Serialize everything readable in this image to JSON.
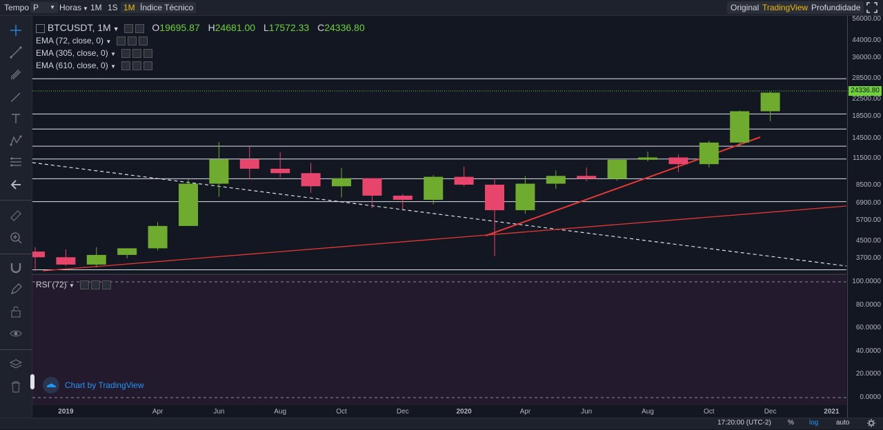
{
  "toolbar": {
    "tempo": "Tempo",
    "p": "P",
    "horas": "Horas",
    "m1": "1M",
    "s1": "1S",
    "m1_active": "1M",
    "indicador": "Índice Técnico",
    "original": "Original",
    "tradingview": "TradingView",
    "profundidade": "Profundidade"
  },
  "legend": {
    "symbol": "BTCUSDT, 1M",
    "o_label": "O",
    "o_val": "19695.87",
    "h_label": "H",
    "h_val": "24681.00",
    "l_label": "L",
    "l_val": "17572.33",
    "c_label": "C",
    "c_val": "24336.80",
    "ema1": "EMA (72, close, 0)",
    "ema2": "EMA (305, close, 0)",
    "ema3": "EMA (610, close, 0)",
    "rsi": "RSI (72)"
  },
  "price_axis": [
    "56000.00",
    "44000.00",
    "36000.00",
    "28500.00",
    "22500.00",
    "18500.00",
    "14500.00",
    "11500.00",
    "8500.00",
    "6900.00",
    "5700.00",
    "4500.00",
    "3700.00"
  ],
  "current_price": "24336.80",
  "rsi_axis": [
    "100.0000",
    "80.0000",
    "60.0000",
    "40.0000",
    "20.0000",
    "0.0000"
  ],
  "time_axis": [
    "2019",
    "Apr",
    "Jun",
    "Aug",
    "Oct",
    "Dec",
    "2020",
    "Apr",
    "Jun",
    "Aug",
    "Oct",
    "Dec",
    "2021"
  ],
  "watermark": "Chart by TradingView",
  "bottom": {
    "time": "17:20:00 (UTC-2)",
    "percent": "%",
    "log": "log",
    "auto": "auto"
  },
  "colors": {
    "up": "#6fab2e",
    "down": "#e8456d",
    "trend": "#e53935",
    "accent": "#f0b90b"
  },
  "chart_data": {
    "type": "candlestick",
    "scale": "log",
    "candles": [
      {
        "t": "2018-12",
        "o": 4000,
        "h": 4200,
        "l": 3200,
        "c": 3750
      },
      {
        "t": "2019-01",
        "o": 3750,
        "h": 4100,
        "l": 3400,
        "c": 3450
      },
      {
        "t": "2019-02",
        "o": 3450,
        "h": 4200,
        "l": 3350,
        "c": 3850
      },
      {
        "t": "2019-03",
        "o": 3850,
        "h": 4150,
        "l": 3700,
        "c": 4150
      },
      {
        "t": "2019-04",
        "o": 4150,
        "h": 5600,
        "l": 4050,
        "c": 5350
      },
      {
        "t": "2019-05",
        "o": 5350,
        "h": 9100,
        "l": 5350,
        "c": 8650
      },
      {
        "t": "2019-06",
        "o": 8650,
        "h": 13900,
        "l": 7450,
        "c": 11400
      },
      {
        "t": "2019-07",
        "o": 11400,
        "h": 13200,
        "l": 9100,
        "c": 10250
      },
      {
        "t": "2019-08",
        "o": 10250,
        "h": 12400,
        "l": 9300,
        "c": 9750
      },
      {
        "t": "2019-09",
        "o": 9750,
        "h": 10950,
        "l": 7800,
        "c": 8400
      },
      {
        "t": "2019-10",
        "o": 8400,
        "h": 10350,
        "l": 7400,
        "c": 9200
      },
      {
        "t": "2019-11",
        "o": 9200,
        "h": 9200,
        "l": 6550,
        "c": 7550
      },
      {
        "t": "2019-12",
        "o": 7550,
        "h": 7700,
        "l": 6450,
        "c": 7200
      },
      {
        "t": "2020-01",
        "o": 7200,
        "h": 9550,
        "l": 6850,
        "c": 9350
      },
      {
        "t": "2020-02",
        "o": 9350,
        "h": 10500,
        "l": 8400,
        "c": 8550
      },
      {
        "t": "2020-03",
        "o": 8550,
        "h": 9200,
        "l": 3800,
        "c": 6400
      },
      {
        "t": "2020-04",
        "o": 6400,
        "h": 9450,
        "l": 6150,
        "c": 8650
      },
      {
        "t": "2020-05",
        "o": 8650,
        "h": 10050,
        "l": 8150,
        "c": 9450
      },
      {
        "t": "2020-06",
        "o": 9450,
        "h": 10400,
        "l": 8900,
        "c": 9150
      },
      {
        "t": "2020-07",
        "o": 9150,
        "h": 11450,
        "l": 8950,
        "c": 11350
      },
      {
        "t": "2020-08",
        "o": 11350,
        "h": 12450,
        "l": 11150,
        "c": 11650
      },
      {
        "t": "2020-09",
        "o": 11650,
        "h": 12050,
        "l": 9850,
        "c": 10800
      },
      {
        "t": "2020-10",
        "o": 10800,
        "h": 14100,
        "l": 10400,
        "c": 13800
      },
      {
        "t": "2020-11",
        "o": 13800,
        "h": 19850,
        "l": 13200,
        "c": 19700
      },
      {
        "t": "2020-12",
        "o": 19695.87,
        "h": 24681,
        "l": 17572.33,
        "c": 24336.8
      }
    ],
    "horizontal_levels": [
      28500,
      19100,
      16100,
      13250,
      11450,
      9150,
      7050,
      3250
    ],
    "rsi_ylim": [
      0,
      100
    ]
  }
}
